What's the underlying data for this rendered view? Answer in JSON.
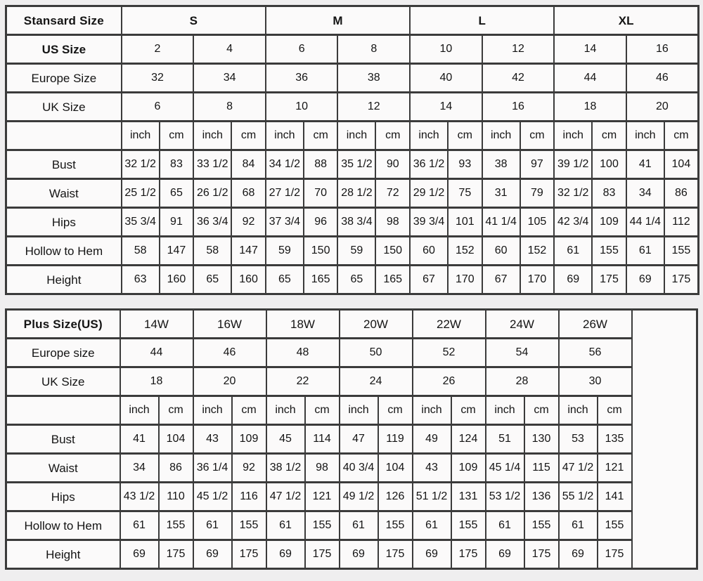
{
  "colors": {
    "page_background": "#efeeef",
    "cell_background": "#fbfafa",
    "border": "#3b3b3b",
    "text": "#141414"
  },
  "chart_data": [
    {
      "type": "table",
      "corner_label": "Stansard Size",
      "group_row": {
        "labels": [
          "S",
          "M",
          "L",
          "XL"
        ],
        "span_pairs": 2,
        "bold": true
      },
      "band_rows": [
        {
          "label": "US Size",
          "bold": true,
          "values": [
            "2",
            "4",
            "6",
            "8",
            "10",
            "12",
            "14",
            "16"
          ]
        },
        {
          "label": "Europe Size",
          "bold": false,
          "values": [
            "32",
            "34",
            "36",
            "38",
            "40",
            "42",
            "44",
            "46"
          ]
        },
        {
          "label": "UK Size",
          "bold": false,
          "values": [
            "6",
            "8",
            "10",
            "12",
            "14",
            "16",
            "18",
            "20"
          ]
        }
      ],
      "units": [
        "inch",
        "cm"
      ],
      "measure_rows": [
        {
          "label": "Bust",
          "values": [
            "32 1/2",
            "83",
            "33 1/2",
            "84",
            "34 1/2",
            "88",
            "35 1/2",
            "90",
            "36 1/2",
            "93",
            "38",
            "97",
            "39 1/2",
            "100",
            "41",
            "104"
          ]
        },
        {
          "label": "Waist",
          "values": [
            "25 1/2",
            "65",
            "26 1/2",
            "68",
            "27 1/2",
            "70",
            "28 1/2",
            "72",
            "29 1/2",
            "75",
            "31",
            "79",
            "32 1/2",
            "83",
            "34",
            "86"
          ]
        },
        {
          "label": "Hips",
          "values": [
            "35 3/4",
            "91",
            "36 3/4",
            "92",
            "37 3/4",
            "96",
            "38 3/4",
            "98",
            "39 3/4",
            "101",
            "41 1/4",
            "105",
            "42 3/4",
            "109",
            "44 1/4",
            "112"
          ]
        },
        {
          "label": "Hollow to Hem",
          "values": [
            "58",
            "147",
            "58",
            "147",
            "59",
            "150",
            "59",
            "150",
            "60",
            "152",
            "60",
            "152",
            "61",
            "155",
            "61",
            "155"
          ]
        },
        {
          "label": "Height",
          "values": [
            "63",
            "160",
            "65",
            "160",
            "65",
            "165",
            "65",
            "165",
            "67",
            "170",
            "67",
            "170",
            "69",
            "175",
            "69",
            "175"
          ]
        }
      ],
      "trailing_empty_column": false
    },
    {
      "type": "table",
      "corner_label": "Plus Size(US)",
      "group_row": {
        "labels": [
          "14W",
          "16W",
          "18W",
          "20W",
          "22W",
          "24W",
          "26W"
        ],
        "span_pairs": 1,
        "bold": false
      },
      "band_rows": [
        {
          "label": "Europe size",
          "bold": false,
          "values": [
            "44",
            "46",
            "48",
            "50",
            "52",
            "54",
            "56"
          ]
        },
        {
          "label": "UK Size",
          "bold": false,
          "values": [
            "18",
            "20",
            "22",
            "24",
            "26",
            "28",
            "30"
          ]
        }
      ],
      "units": [
        "inch",
        "cm"
      ],
      "measure_rows": [
        {
          "label": "Bust",
          "values": [
            "41",
            "104",
            "43",
            "109",
            "45",
            "114",
            "47",
            "119",
            "49",
            "124",
            "51",
            "130",
            "53",
            "135"
          ]
        },
        {
          "label": "Waist",
          "values": [
            "34",
            "86",
            "36 1/4",
            "92",
            "38 1/2",
            "98",
            "40 3/4",
            "104",
            "43",
            "109",
            "45 1/4",
            "115",
            "47 1/2",
            "121"
          ]
        },
        {
          "label": "Hips",
          "values": [
            "43 1/2",
            "110",
            "45 1/2",
            "116",
            "47 1/2",
            "121",
            "49 1/2",
            "126",
            "51 1/2",
            "131",
            "53 1/2",
            "136",
            "55 1/2",
            "141"
          ]
        },
        {
          "label": "Hollow to Hem",
          "values": [
            "61",
            "155",
            "61",
            "155",
            "61",
            "155",
            "61",
            "155",
            "61",
            "155",
            "61",
            "155",
            "61",
            "155"
          ]
        },
        {
          "label": "Height",
          "values": [
            "69",
            "175",
            "69",
            "175",
            "69",
            "175",
            "69",
            "175",
            "69",
            "175",
            "69",
            "175",
            "69",
            "175"
          ]
        }
      ],
      "trailing_empty_column": true
    }
  ]
}
